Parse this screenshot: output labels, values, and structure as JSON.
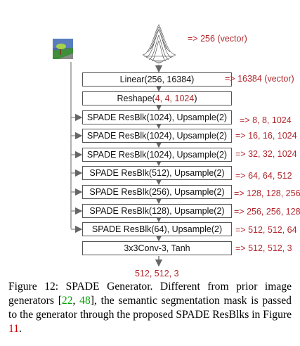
{
  "diagram": {
    "noise_annotation": "=> 256 (vector)",
    "output_label": "512, 512, 3",
    "layers": [
      {
        "pre": "Linear(256, 16384)",
        "hl": "",
        "post": "",
        "annotation": "=> 16384 (vector)"
      },
      {
        "pre": "Reshape(",
        "hl": "4, 4, 1024",
        "post": ")",
        "annotation": ""
      },
      {
        "pre": "SPADE ResBlk(1024), Upsample(2)",
        "hl": "",
        "post": "",
        "annotation": "=> 8, 8, 1024"
      },
      {
        "pre": "SPADE ResBlk(1024), Upsample(2)",
        "hl": "",
        "post": "",
        "annotation": "=> 16, 16, 1024"
      },
      {
        "pre": "SPADE ResBlk(1024), Upsample(2)",
        "hl": "",
        "post": "",
        "annotation": "=> 32, 32, 1024"
      },
      {
        "pre": "SPADE ResBlk(512), Upsample(2)",
        "hl": "",
        "post": "",
        "annotation": "=> 64, 64, 512"
      },
      {
        "pre": "SPADE ResBlk(256), Upsample(2)",
        "hl": "",
        "post": "",
        "annotation": "=> 128, 128, 256"
      },
      {
        "pre": "SPADE ResBlk(128), Upsample(2)",
        "hl": "",
        "post": "",
        "annotation": "=> 256, 256, 128"
      },
      {
        "pre": "SPADE ResBlk(64), Upsample(2)",
        "hl": "",
        "post": "",
        "annotation": "=> 512, 512, 64"
      },
      {
        "pre": "3x3Conv-3, Tanh",
        "hl": "",
        "post": "",
        "annotation": "=> 512, 512, 3"
      }
    ]
  },
  "caption": {
    "p1": "Figure 12: SPADE Generator. Different from prior image generators [",
    "ref1": "22",
    "sep": ", ",
    "ref2": "48",
    "p2": "], the semantic segmentation mask is passed to the generator through the proposed SPADE ResBlks in Figure ",
    "ref3": "11",
    "p3": "."
  },
  "colors": {
    "annotation": "#b0272d",
    "citation": "#00a000",
    "figure_ref": "#d10000",
    "mask_sky": "#5a7dbd",
    "mask_grass": "#3f8f3a",
    "mask_road": "#8a8a8a"
  },
  "icons": [
    "segmentation-mask-icon",
    "gaussian-noise-surface-icon"
  ]
}
